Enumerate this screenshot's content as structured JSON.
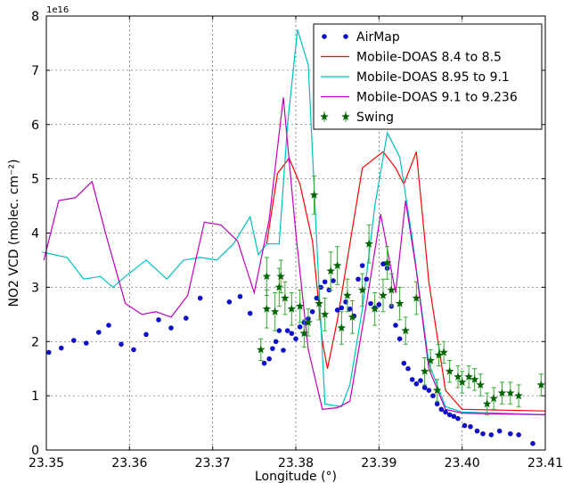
{
  "chart_data": {
    "type": "line",
    "xlabel": "Longitude (°)",
    "ylabel": "NO2 VCD (molec. cm⁻²)",
    "y_scale_label": "1e16",
    "xlim": [
      23.35,
      23.41
    ],
    "ylim": [
      0,
      8
    ],
    "x_ticks": [
      "23.35",
      "23.36",
      "23.37",
      "23.38",
      "23.39",
      "23.40",
      "23.41"
    ],
    "y_ticks": [
      "0",
      "1",
      "2",
      "3",
      "4",
      "5",
      "6",
      "7",
      "8"
    ],
    "grid": true,
    "legend_position": "top-right",
    "colors": {
      "airmap": "#1010c8",
      "mdoas_84": "#ff0000",
      "mdoas_895": "#00bfbf",
      "mdoas_91": "#bf00bf",
      "swing": "#006400"
    },
    "series": [
      {
        "name": "AirMap",
        "kind": "scatter",
        "color": "#1010c8",
        "points": [
          [
            23.3503,
            1.8
          ],
          [
            23.3518,
            1.88
          ],
          [
            23.3533,
            2.02
          ],
          [
            23.3548,
            1.97
          ],
          [
            23.3563,
            2.17
          ],
          [
            23.3575,
            2.3
          ],
          [
            23.359,
            1.95
          ],
          [
            23.3605,
            1.85
          ],
          [
            23.362,
            2.13
          ],
          [
            23.3635,
            2.4
          ],
          [
            23.365,
            2.25
          ],
          [
            23.3668,
            2.43
          ],
          [
            23.3685,
            2.8
          ],
          [
            23.372,
            2.73
          ],
          [
            23.3733,
            2.83
          ],
          [
            23.3745,
            2.52
          ],
          [
            23.3762,
            1.6
          ],
          [
            23.3768,
            1.68
          ],
          [
            23.3772,
            1.87
          ],
          [
            23.3776,
            2.0
          ],
          [
            23.378,
            2.2
          ],
          [
            23.3785,
            1.84
          ],
          [
            23.379,
            2.2
          ],
          [
            23.3795,
            2.15
          ],
          [
            23.38,
            2.05
          ],
          [
            23.3805,
            2.27
          ],
          [
            23.381,
            2.35
          ],
          [
            23.3815,
            2.42
          ],
          [
            23.382,
            2.55
          ],
          [
            23.3825,
            2.8
          ],
          [
            23.383,
            3.0
          ],
          [
            23.3835,
            3.1
          ],
          [
            23.384,
            2.95
          ],
          [
            23.3845,
            3.12
          ],
          [
            23.385,
            2.58
          ],
          [
            23.3855,
            2.62
          ],
          [
            23.386,
            2.73
          ],
          [
            23.3865,
            2.6
          ],
          [
            23.387,
            2.47
          ],
          [
            23.3875,
            3.15
          ],
          [
            23.388,
            3.4
          ],
          [
            23.3885,
            3.15
          ],
          [
            23.389,
            2.7
          ],
          [
            23.3895,
            2.62
          ],
          [
            23.39,
            2.68
          ],
          [
            23.3905,
            3.43
          ],
          [
            23.391,
            3.35
          ],
          [
            23.3915,
            2.65
          ],
          [
            23.392,
            2.3
          ],
          [
            23.3925,
            2.05
          ],
          [
            23.393,
            1.6
          ],
          [
            23.3935,
            1.5
          ],
          [
            23.394,
            1.3
          ],
          [
            23.3945,
            1.22
          ],
          [
            23.395,
            1.28
          ],
          [
            23.3955,
            1.15
          ],
          [
            23.396,
            1.1
          ],
          [
            23.3965,
            1.0
          ],
          [
            23.397,
            0.85
          ],
          [
            23.3975,
            0.75
          ],
          [
            23.398,
            0.7
          ],
          [
            23.3985,
            0.65
          ],
          [
            23.399,
            0.62
          ],
          [
            23.3995,
            0.58
          ],
          [
            23.4003,
            0.45
          ],
          [
            23.401,
            0.43
          ],
          [
            23.4018,
            0.35
          ],
          [
            23.4025,
            0.3
          ],
          [
            23.4035,
            0.28
          ],
          [
            23.4045,
            0.35
          ],
          [
            23.4058,
            0.3
          ],
          [
            23.4068,
            0.28
          ],
          [
            23.4085,
            0.12
          ]
        ]
      },
      {
        "name": "Mobile-DOAS 8.4 to 8.5",
        "kind": "line",
        "color": "#ff0000",
        "points": [
          [
            23.3765,
            3.8
          ],
          [
            23.3778,
            5.1
          ],
          [
            23.3792,
            5.38
          ],
          [
            23.3805,
            4.9
          ],
          [
            23.382,
            3.85
          ],
          [
            23.3832,
            2.0
          ],
          [
            23.3838,
            1.5
          ],
          [
            23.385,
            2.4
          ],
          [
            23.3865,
            3.8
          ],
          [
            23.388,
            5.2
          ],
          [
            23.3905,
            5.5
          ],
          [
            23.392,
            5.2
          ],
          [
            23.393,
            4.9
          ],
          [
            23.3945,
            5.5
          ],
          [
            23.396,
            3.1
          ],
          [
            23.398,
            1.1
          ],
          [
            23.4,
            0.75
          ],
          [
            23.41,
            0.72
          ]
        ]
      },
      {
        "name": "Mobile-DOAS 8.95 to 9.1",
        "kind": "line",
        "color": "#00bfbf",
        "points": [
          [
            23.3495,
            3.65
          ],
          [
            23.3525,
            3.55
          ],
          [
            23.3545,
            3.15
          ],
          [
            23.3565,
            3.2
          ],
          [
            23.358,
            3.0
          ],
          [
            23.3595,
            3.2
          ],
          [
            23.362,
            3.5
          ],
          [
            23.3645,
            3.15
          ],
          [
            23.3665,
            3.5
          ],
          [
            23.3685,
            3.55
          ],
          [
            23.3705,
            3.5
          ],
          [
            23.3725,
            3.8
          ],
          [
            23.3745,
            4.3
          ],
          [
            23.3755,
            3.6
          ],
          [
            23.3765,
            3.8
          ],
          [
            23.378,
            3.8
          ],
          [
            23.379,
            6.0
          ],
          [
            23.3802,
            7.75
          ],
          [
            23.3815,
            7.1
          ],
          [
            23.3825,
            3.9
          ],
          [
            23.3835,
            0.85
          ],
          [
            23.3855,
            0.8
          ],
          [
            23.3865,
            1.2
          ],
          [
            23.388,
            2.6
          ],
          [
            23.3895,
            4.5
          ],
          [
            23.391,
            5.85
          ],
          [
            23.3925,
            5.4
          ],
          [
            23.394,
            3.9
          ],
          [
            23.396,
            1.6
          ],
          [
            23.398,
            0.8
          ],
          [
            23.4,
            0.7
          ],
          [
            23.41,
            0.65
          ]
        ]
      },
      {
        "name": "Mobile-DOAS 9.1 to 9.236",
        "kind": "line",
        "color": "#bf00bf",
        "points": [
          [
            23.3497,
            3.5
          ],
          [
            23.3515,
            4.6
          ],
          [
            23.3535,
            4.65
          ],
          [
            23.3555,
            4.95
          ],
          [
            23.3572,
            3.95
          ],
          [
            23.3595,
            2.7
          ],
          [
            23.3615,
            2.5
          ],
          [
            23.3632,
            2.55
          ],
          [
            23.365,
            2.45
          ],
          [
            23.367,
            2.85
          ],
          [
            23.369,
            4.2
          ],
          [
            23.371,
            4.15
          ],
          [
            23.373,
            3.85
          ],
          [
            23.375,
            2.9
          ],
          [
            23.3768,
            4.25
          ],
          [
            23.3785,
            6.5
          ],
          [
            23.38,
            4.0
          ],
          [
            23.3815,
            1.85
          ],
          [
            23.3832,
            0.75
          ],
          [
            23.385,
            0.78
          ],
          [
            23.3865,
            0.9
          ],
          [
            23.3885,
            2.7
          ],
          [
            23.3902,
            4.35
          ],
          [
            23.392,
            2.9
          ],
          [
            23.3932,
            4.6
          ],
          [
            23.3945,
            3.3
          ],
          [
            23.396,
            1.5
          ],
          [
            23.398,
            0.75
          ],
          [
            23.4,
            0.68
          ],
          [
            23.41,
            0.65
          ]
        ]
      },
      {
        "name": "Swing",
        "kind": "errorbar",
        "color": "#006400",
        "points": [
          [
            23.3758,
            1.85,
            0.2
          ],
          [
            23.3765,
            2.6,
            0.35
          ],
          [
            23.3765,
            3.2,
            0.35
          ],
          [
            23.3775,
            2.55,
            0.35
          ],
          [
            23.378,
            3.0,
            0.35
          ],
          [
            23.3782,
            3.2,
            0.3
          ],
          [
            23.3787,
            2.8,
            0.3
          ],
          [
            23.3795,
            2.6,
            0.3
          ],
          [
            23.3805,
            2.65,
            0.3
          ],
          [
            23.381,
            2.15,
            0.25
          ],
          [
            23.3815,
            2.35,
            0.25
          ],
          [
            23.3822,
            4.7,
            0.35
          ],
          [
            23.3828,
            2.7,
            0.3
          ],
          [
            23.3835,
            2.5,
            0.3
          ],
          [
            23.3842,
            3.3,
            0.35
          ],
          [
            23.385,
            3.4,
            0.35
          ],
          [
            23.3855,
            2.25,
            0.3
          ],
          [
            23.3862,
            2.85,
            0.3
          ],
          [
            23.3868,
            2.45,
            0.3
          ],
          [
            23.388,
            2.95,
            0.3
          ],
          [
            23.3888,
            3.8,
            0.35
          ],
          [
            23.3895,
            2.6,
            0.3
          ],
          [
            23.3905,
            2.85,
            0.3
          ],
          [
            23.391,
            3.45,
            0.3
          ],
          [
            23.3915,
            2.95,
            0.3
          ],
          [
            23.3925,
            2.7,
            0.3
          ],
          [
            23.3932,
            2.2,
            0.25
          ],
          [
            23.3945,
            2.8,
            0.3
          ],
          [
            23.3955,
            1.45,
            0.25
          ],
          [
            23.3962,
            1.65,
            0.2
          ],
          [
            23.397,
            1.1,
            0.2
          ],
          [
            23.3972,
            1.75,
            0.2
          ],
          [
            23.3978,
            1.8,
            0.2
          ],
          [
            23.3985,
            1.45,
            0.2
          ],
          [
            23.3995,
            1.35,
            0.2
          ],
          [
            23.4,
            1.25,
            0.2
          ],
          [
            23.4008,
            1.35,
            0.2
          ],
          [
            23.4015,
            1.3,
            0.2
          ],
          [
            23.4022,
            1.2,
            0.2
          ],
          [
            23.403,
            0.85,
            0.2
          ],
          [
            23.4038,
            0.95,
            0.2
          ],
          [
            23.4048,
            1.05,
            0.2
          ],
          [
            23.4058,
            1.05,
            0.2
          ],
          [
            23.4068,
            1.0,
            0.2
          ],
          [
            23.4095,
            1.2,
            0.2
          ]
        ]
      }
    ]
  }
}
